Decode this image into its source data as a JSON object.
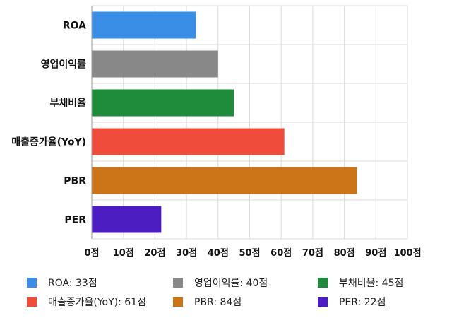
{
  "chart_data": {
    "type": "bar",
    "orientation": "horizontal",
    "categories": [
      "ROA",
      "영업이익률",
      "부채비율",
      "매출증가율(YoY)",
      "PBR",
      "PER"
    ],
    "values": [
      33,
      40,
      45,
      61,
      84,
      22
    ],
    "colors": [
      "#3a8ee6",
      "#888888",
      "#1e8c3a",
      "#ef4c3c",
      "#cc7418",
      "#4c1ec2"
    ],
    "xlim": [
      0,
      100
    ],
    "xticks": [
      "0점",
      "10점",
      "20점",
      "30점",
      "40점",
      "50점",
      "60점",
      "70점",
      "80점",
      "90점",
      "100점"
    ],
    "grid": true,
    "legend_position": "bottom",
    "legend": [
      "ROA: 33점",
      "영업이익률: 40점",
      "부채비율: 45점",
      "매출증가율(YoY): 61점",
      "PBR: 84점",
      "PER: 22점"
    ]
  }
}
